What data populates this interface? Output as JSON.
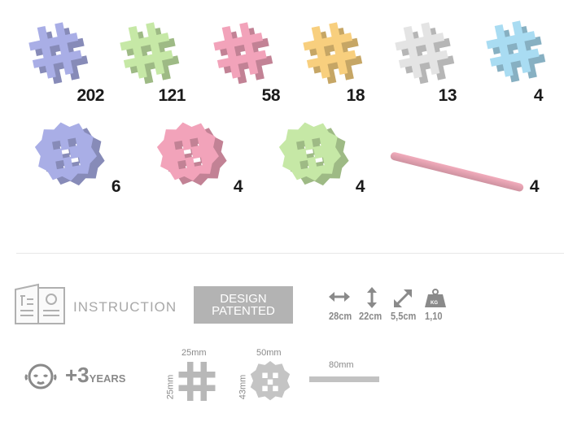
{
  "pieces": {
    "row1": [
      {
        "shape": "hash",
        "color": "#a9aee6",
        "count": "202"
      },
      {
        "shape": "hash",
        "color": "#c6e8a6",
        "count": "121"
      },
      {
        "shape": "hash",
        "color": "#f2a3ba",
        "count": "58"
      },
      {
        "shape": "hash",
        "color": "#f8cf7e",
        "count": "18"
      },
      {
        "shape": "hash",
        "color": "#e4e4e4",
        "count": "13"
      },
      {
        "shape": "hash",
        "color": "#a9dcf2",
        "count": "4"
      }
    ],
    "row2": [
      {
        "shape": "snowflake",
        "color": "#a9aee6",
        "count": "6"
      },
      {
        "shape": "snowflake",
        "color": "#f2a3ba",
        "count": "4"
      },
      {
        "shape": "snowflake",
        "color": "#c6e8a6",
        "count": "4"
      },
      {
        "shape": "rod",
        "color": "#f2acbc",
        "count": "4"
      }
    ]
  },
  "info": {
    "instruction_label": "INSTRUCTION",
    "design_patented": [
      "DESIGN",
      "PATENTED"
    ],
    "dimensions": {
      "width": "28cm",
      "height": "22cm",
      "depth": "5,5cm",
      "weight": "1,10",
      "weight_unit": "KG"
    },
    "age": {
      "plus": "+3",
      "unit": "YEARS"
    },
    "sizes": {
      "hash": {
        "width": "25mm",
        "height": "25mm"
      },
      "snowflake": {
        "width": "50mm",
        "height": "43mm"
      },
      "rod": {
        "length": "80mm"
      }
    }
  }
}
